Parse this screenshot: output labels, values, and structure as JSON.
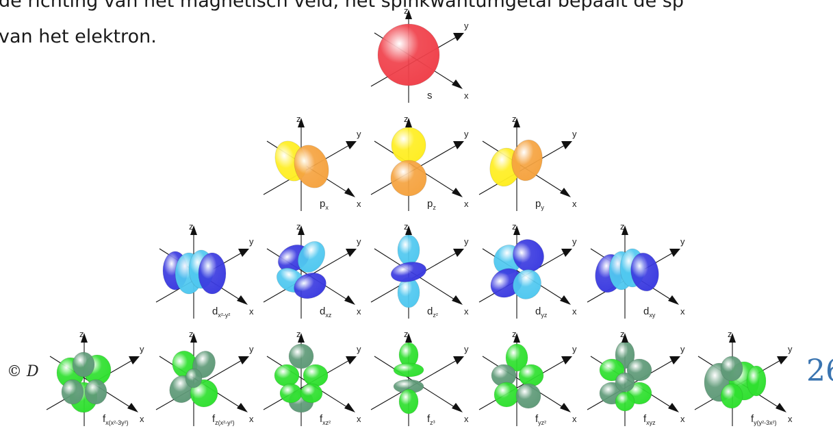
{
  "document": {
    "line1": "de richting van het magnetisch veld, het spinkwantumgetal bepaalt de sp",
    "line2": "van het elektron.",
    "footer_left": "© D",
    "page_number": "26"
  },
  "axis_labels": {
    "x": "x",
    "y": "y",
    "z": "z"
  },
  "orbitals": {
    "s": {
      "main": "s",
      "sub": ""
    },
    "px": {
      "main": "p",
      "sub": "x"
    },
    "pz": {
      "main": "p",
      "sub": "z"
    },
    "py": {
      "main": "p",
      "sub": "y"
    },
    "dx2y2": {
      "main": "d",
      "sub": "x²-y²"
    },
    "dxz": {
      "main": "d",
      "sub": "xz"
    },
    "dz2": {
      "main": "d",
      "sub": "z²"
    },
    "dyz": {
      "main": "d",
      "sub": "yz"
    },
    "dxy": {
      "main": "d",
      "sub": "xy"
    },
    "fx": {
      "main": "f",
      "sub": "x(x²-3y²)"
    },
    "fz": {
      "main": "f",
      "sub": "z(x²-y²)"
    },
    "fxz2": {
      "main": "f",
      "sub": "xz²"
    },
    "fz3": {
      "main": "f",
      "sub": "z³"
    },
    "fyz2": {
      "main": "f",
      "sub": "yz²"
    },
    "fxyz": {
      "main": "f",
      "sub": "xyz"
    },
    "fy": {
      "main": "f",
      "sub": "y(y²-3x²)"
    }
  },
  "colors": {
    "s": "#f0404a",
    "p_pos": "#ffee22",
    "p_neg": "#f5a340",
    "d_pos": "#3b3be0",
    "d_neg": "#50c8f0",
    "f_pos": "#2fe02f",
    "f_neg": "#5f9a78",
    "axis": "#111111",
    "page_number": "#3a74b0"
  }
}
